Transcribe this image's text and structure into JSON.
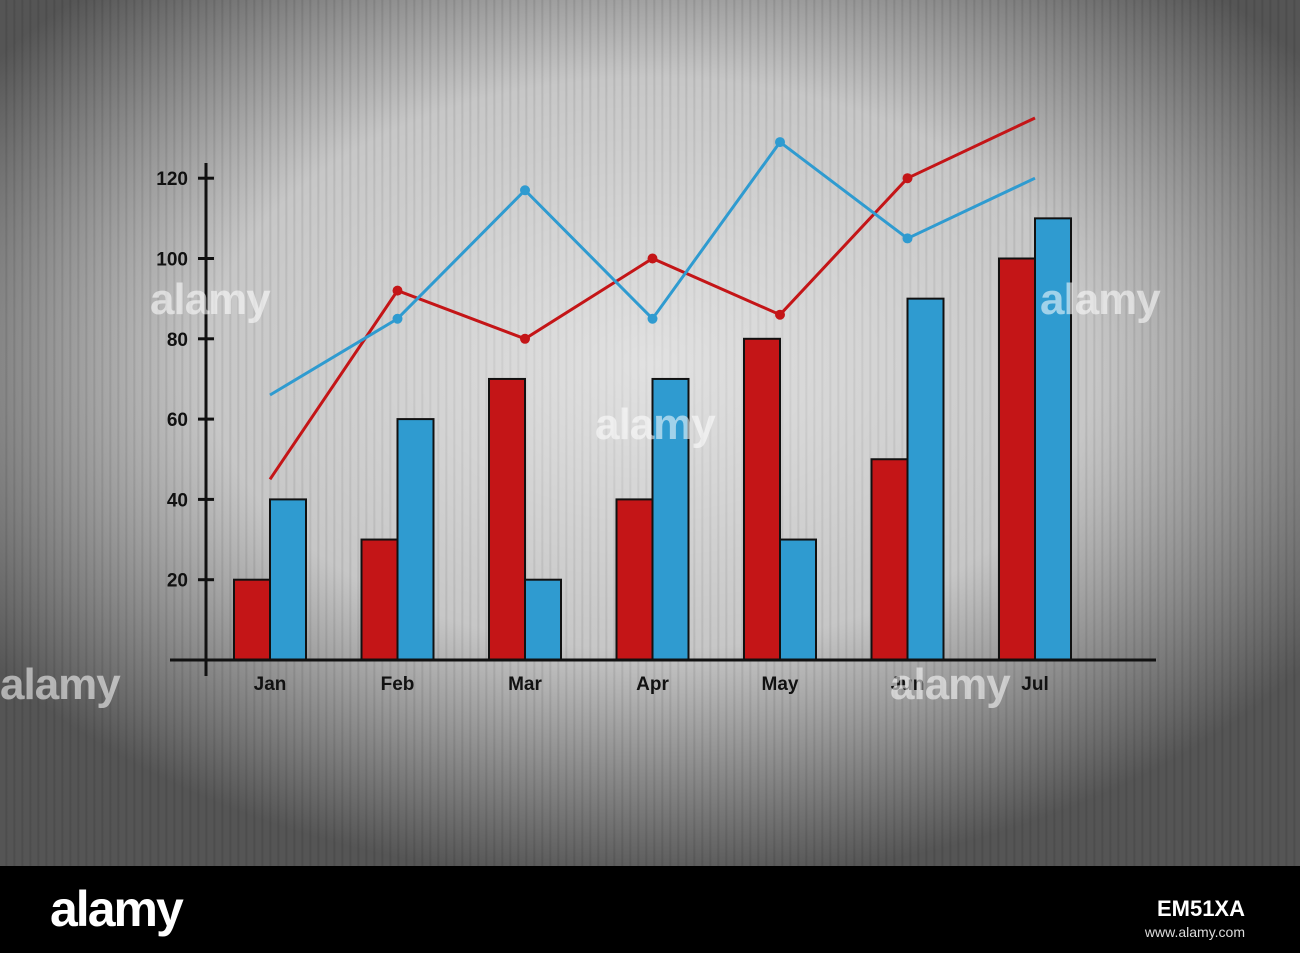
{
  "watermark": {
    "text": "alamy"
  },
  "footer": {
    "logo": "alamy",
    "image_id": "EM51XA",
    "url": "www.alamy.com"
  },
  "colors": {
    "red": "#c41517",
    "blue": "#2f9bd0",
    "axis": "#111111"
  },
  "chart_data": {
    "type": "bar",
    "categories": [
      "Jan",
      "Feb",
      "Mar",
      "Apr",
      "May",
      "Jun",
      "Jul"
    ],
    "series": [
      {
        "kind": "bar",
        "color": "red",
        "values": [
          20,
          30,
          70,
          40,
          80,
          50,
          100
        ]
      },
      {
        "kind": "bar",
        "color": "blue",
        "values": [
          40,
          60,
          20,
          70,
          30,
          90,
          110
        ]
      },
      {
        "kind": "line",
        "color": "red",
        "values": [
          45,
          92,
          80,
          100,
          86,
          120,
          135
        ]
      },
      {
        "kind": "line",
        "color": "blue",
        "values": [
          66,
          85,
          117,
          85,
          129,
          105,
          120
        ]
      }
    ],
    "yticks": [
      20,
      40,
      60,
      80,
      100,
      120
    ],
    "ylim": [
      0,
      130
    ],
    "grid": false,
    "title": "",
    "xlabel": "",
    "ylabel": ""
  }
}
